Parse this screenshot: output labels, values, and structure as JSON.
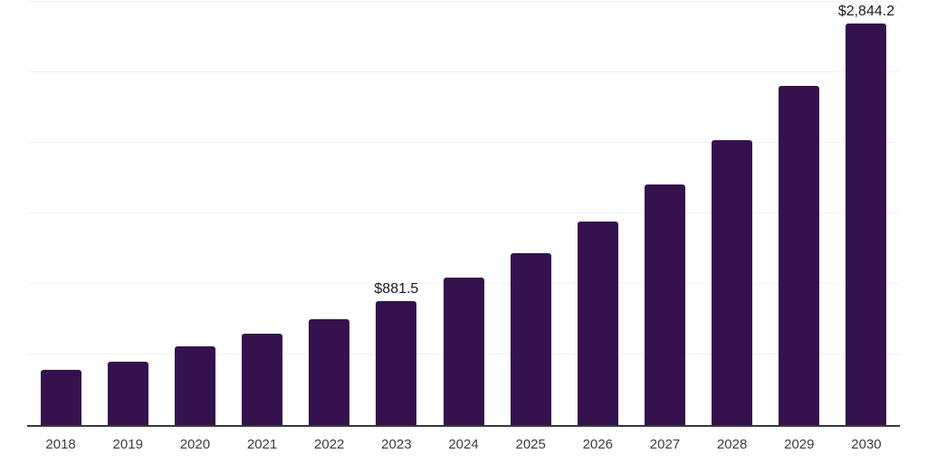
{
  "chart_data": {
    "type": "bar",
    "title": "",
    "xlabel": "",
    "ylabel": "",
    "categories": [
      "2018",
      "2019",
      "2020",
      "2021",
      "2022",
      "2023",
      "2024",
      "2025",
      "2026",
      "2027",
      "2028",
      "2029",
      "2030"
    ],
    "values": [
      390,
      450,
      555,
      650,
      750,
      881.5,
      1043,
      1218,
      1442,
      1705,
      2022,
      2405,
      2844.2
    ],
    "value_labels": [
      "",
      "",
      "",
      "",
      "",
      "$881.5",
      "",
      "",
      "",
      "",
      "",
      "",
      "$2,844.2"
    ],
    "ylim": [
      0,
      3000
    ],
    "gridline_interval": 500,
    "grid": "horizontal",
    "legend": "none",
    "y_axis_labels_visible": false,
    "colors": {
      "bar": "#35114d",
      "axis_line": "#383838",
      "gridline": "#f2f2f2",
      "tick_label": "#3c3c3c",
      "value_label": "#1a1a1a",
      "background": "#ffffff"
    }
  }
}
